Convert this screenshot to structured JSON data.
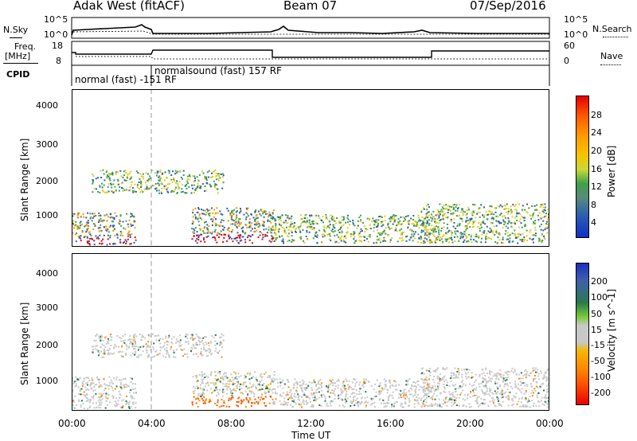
{
  "header": {
    "station": "Adak West (fitACF)",
    "beam": "Beam 07",
    "date": "07/Sep/2016"
  },
  "top_panels": {
    "nsky_label": "N.Sky",
    "nsky_ticks": [
      "10^5",
      "10^0"
    ],
    "nsearch_label": "N.Search",
    "nsearch_ticks": [
      "10^5",
      "10^0"
    ],
    "freq_label": "Freq.",
    "freq_unit": "[MHz]",
    "freq_ticks": [
      "18",
      "8"
    ],
    "nave_label": "Nave",
    "nave_ticks": [
      "60",
      "0"
    ],
    "cpid_label": "CPID",
    "cpid_modes": [
      "normal (fast)  -151 RF",
      "normalsound (fast)  157 RF"
    ]
  },
  "chart_data": [
    {
      "type": "heatmap",
      "title": "",
      "xlabel": "",
      "ylabel": "Slant Range [km]",
      "xlim": [
        0,
        24
      ],
      "ylim": [
        180,
        4600
      ],
      "y_ticks": [
        "4000",
        "3000",
        "2000",
        "1000"
      ],
      "colorbar_label": "Power [dB]",
      "colorbar_ticks": [
        "28",
        "24",
        "20",
        "16",
        "12",
        "8",
        "4"
      ],
      "colorbar_colors": [
        "#e80000",
        "#ff5a00",
        "#ff9a00",
        "#f5c400",
        "#c8d83a",
        "#3f9f4a",
        "#5a8a7a",
        "#2e5fae",
        "#1030c8"
      ],
      "regions": [
        {
          "t0": 0.0,
          "t1": 3.2,
          "r0": 250,
          "r1": 1150,
          "level": "high"
        },
        {
          "t0": 1.0,
          "t1": 7.6,
          "r0": 1700,
          "r1": 2350,
          "level": "medium"
        },
        {
          "t0": 6.0,
          "t1": 10.2,
          "r0": 300,
          "r1": 1300,
          "level": "high"
        },
        {
          "t0": 10.0,
          "t1": 18.5,
          "r0": 300,
          "r1": 1100,
          "level": "medium"
        },
        {
          "t0": 17.5,
          "t1": 24.0,
          "r0": 300,
          "r1": 1400,
          "level": "medium"
        }
      ]
    },
    {
      "type": "heatmap",
      "title": "",
      "xlabel": "Time UT",
      "ylabel": "Slant Range [km]",
      "xlim": [
        0,
        24
      ],
      "ylim": [
        180,
        4600
      ],
      "x_ticks": [
        "00:00",
        "04:00",
        "08:00",
        "12:00",
        "16:00",
        "20:00",
        "00:00"
      ],
      "y_ticks": [
        "4000",
        "3000",
        "2000",
        "1000"
      ],
      "colorbar_label": "Velocity [m s^-1]",
      "colorbar_ticks": [
        "200",
        "100",
        "50",
        "15",
        "-15",
        "-50",
        "-100",
        "-200"
      ],
      "colorbar_colors": [
        "#1a2fc0",
        "#3f5fae",
        "#2a7a4a",
        "#7acb3a",
        "#c8c8c8",
        "#f5b800",
        "#ff8a00",
        "#ff5000",
        "#e80000"
      ],
      "regions": [
        {
          "t0": 0.0,
          "t1": 3.2,
          "r0": 250,
          "r1": 1150,
          "level": "low"
        },
        {
          "t0": 1.0,
          "t1": 7.6,
          "r0": 1700,
          "r1": 2350,
          "level": "low"
        },
        {
          "t0": 6.0,
          "t1": 10.2,
          "r0": 300,
          "r1": 1300,
          "level": "mixed"
        },
        {
          "t0": 10.0,
          "t1": 18.5,
          "r0": 300,
          "r1": 1100,
          "level": "low"
        },
        {
          "t0": 17.5,
          "t1": 24.0,
          "r0": 300,
          "r1": 1400,
          "level": "low"
        }
      ]
    }
  ]
}
